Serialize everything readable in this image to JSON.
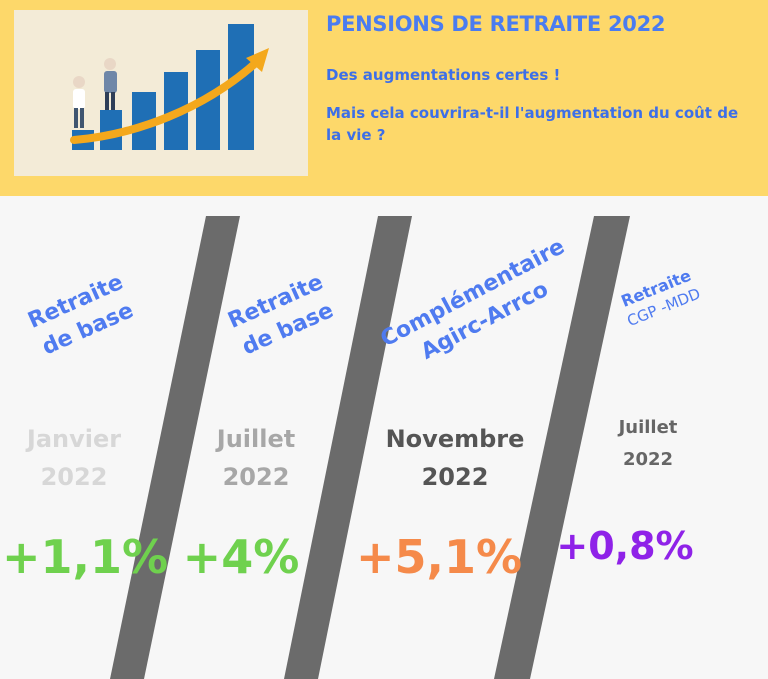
{
  "header": {
    "title": "PENSIONS DE RETRAITE 2022",
    "subtitle1": "Des augmentations certes !",
    "subtitle2": "Mais cela couvrira-t-il l'augmentation du coût de la vie ?"
  },
  "illustration": {
    "icon": "rising-bar-chart-with-retirees-icon",
    "bars": 6
  },
  "colors": {
    "banner": "#fdd86a",
    "title": "#4a7cf0",
    "category": "#4f7bf0",
    "slash": "#6b6b6b",
    "green": "#6fd14e",
    "orange": "#f58a4a",
    "purple": "#8f22e8"
  },
  "items": [
    {
      "category_l1": "Retraite",
      "category_l2": "de base",
      "month": "Janvier",
      "year": "2022",
      "change": "+1,1%"
    },
    {
      "category_l1": "Retraite",
      "category_l2": "de base",
      "month": "Juillet",
      "year": "2022",
      "change": "+4%"
    },
    {
      "category_l1": "Complémentaire",
      "category_l2": "Agirc-Arrco",
      "month": "Novembre",
      "year": "2022",
      "change": "+5,1%"
    },
    {
      "category_l1": "Retraite",
      "category_l2": "CGP -MDD",
      "month": "Juillet",
      "year": "2022",
      "change": "+0,8%"
    }
  ]
}
